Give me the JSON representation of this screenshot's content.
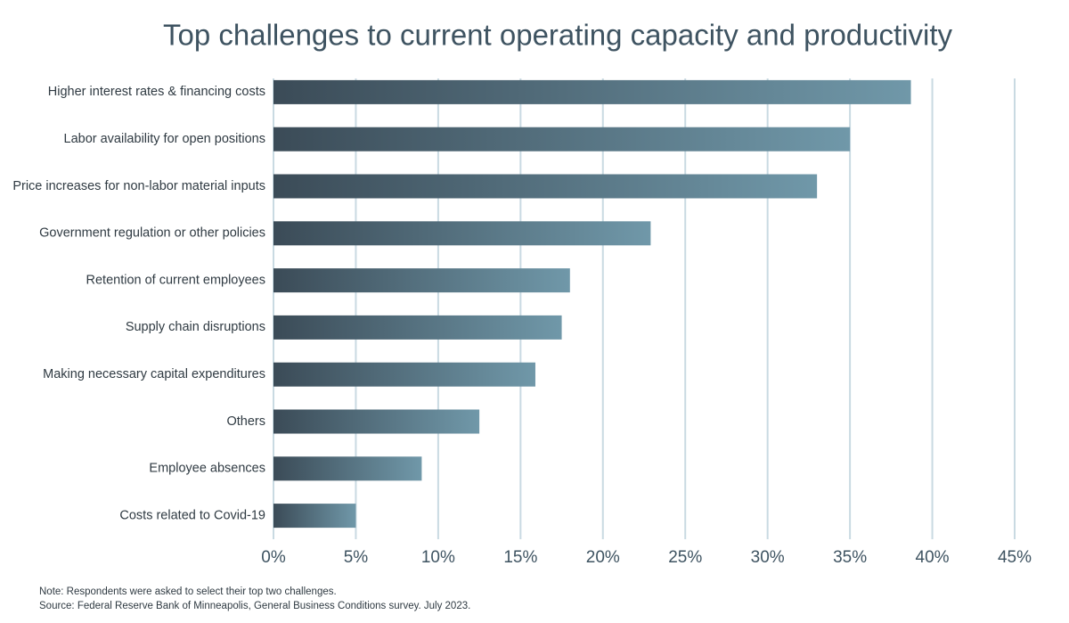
{
  "chart_data": {
    "type": "bar",
    "orientation": "horizontal",
    "title": "Top challenges to current operating capacity and productivity",
    "categories": [
      "Higher interest rates & financing costs",
      "Labor availability for open positions",
      "Price increases for non-labor material inputs",
      "Government regulation or other policies",
      "Retention of current employees",
      "Supply chain disruptions",
      "Making necessary capital expenditures",
      "Others",
      "Employee absences",
      "Costs related to Covid-19"
    ],
    "values": [
      38.7,
      35.0,
      33.0,
      22.9,
      18.0,
      17.5,
      15.9,
      12.5,
      9.0,
      5.0
    ],
    "gradient": [
      "#3b4b57",
      "#7098a9"
    ],
    "grid_color": "#c9dae2",
    "xlim": [
      0,
      45
    ],
    "xticks": [
      {
        "value": 0,
        "label": "0%"
      },
      {
        "value": 5,
        "label": "5%"
      },
      {
        "value": 10,
        "label": "10%"
      },
      {
        "value": 15,
        "label": "15%"
      },
      {
        "value": 20,
        "label": "20%"
      },
      {
        "value": 25,
        "label": "25%"
      },
      {
        "value": 30,
        "label": "30%"
      },
      {
        "value": 35,
        "label": "35%"
      },
      {
        "value": 40,
        "label": "40%"
      },
      {
        "value": 45,
        "label": "45%"
      }
    ],
    "grid": true,
    "notes": [
      "Note: Respondents were asked to select their top two challenges.",
      "Source: Federal Reserve Bank of Minneapolis, General Business Conditions survey. July 2023."
    ]
  }
}
